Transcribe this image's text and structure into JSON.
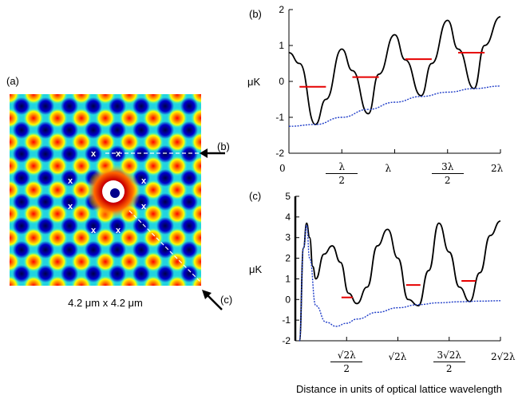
{
  "panel_a": {
    "label": "(a)",
    "caption": "4.2 μm x 4.2 μm",
    "arrow_b_label": "(b)",
    "arrow_c_label": "(c)",
    "marker_symbol": "x",
    "colors": {
      "low": "#00008b",
      "mid": "#ffff00",
      "high": "#8b0000",
      "center": "#ffffff"
    }
  },
  "chart_data": [
    {
      "panel": "(b)",
      "type": "line",
      "ylabel": "μK",
      "ylim": [
        -2,
        2
      ],
      "yticks": [
        "2",
        "1",
        "0",
        "-1",
        "-2"
      ],
      "xlim": [
        0,
        2
      ],
      "xticks_plain": [
        "0",
        "λ",
        "2λ"
      ],
      "xticks_frac": [
        {
          "num": "λ",
          "den": "2"
        },
        {
          "num": "3λ",
          "den": "2"
        }
      ],
      "series": [
        {
          "color": "#000000",
          "style": "solid",
          "x": [
            0,
            0.1,
            0.25,
            0.35,
            0.5,
            0.6,
            0.75,
            0.85,
            1.0,
            1.1,
            1.25,
            1.35,
            1.5,
            1.6,
            1.75,
            1.85,
            2.0
          ],
          "y": [
            0.8,
            0.5,
            -1.2,
            -0.5,
            0.9,
            0.3,
            -0.9,
            0.2,
            1.3,
            0.6,
            -0.4,
            0.5,
            1.7,
            0.9,
            -0.2,
            1.0,
            1.8
          ]
        },
        {
          "color": "#1e3cc8",
          "style": "dotted",
          "x": [
            0,
            0.25,
            0.5,
            0.75,
            1.0,
            1.25,
            1.5,
            1.75,
            2.0
          ],
          "y": [
            -1.25,
            -1.2,
            -1.0,
            -0.78,
            -0.58,
            -0.42,
            -0.3,
            -0.2,
            -0.13
          ]
        }
      ],
      "levels": {
        "color": "#e60000",
        "segments": [
          {
            "x0": 0.1,
            "x1": 0.35,
            "y": -0.15
          },
          {
            "x0": 0.6,
            "x1": 0.85,
            "y": 0.12
          },
          {
            "x0": 1.1,
            "x1": 1.35,
            "y": 0.62
          },
          {
            "x0": 1.6,
            "x1": 1.85,
            "y": 0.8
          }
        ]
      }
    },
    {
      "panel": "(c)",
      "type": "line",
      "ylabel": "μK",
      "ylim": [
        -2,
        5
      ],
      "yticks": [
        "5",
        "4",
        "3",
        "2",
        "1",
        "0",
        "-1",
        "-2"
      ],
      "xlim": [
        0,
        2
      ],
      "xticks_plain": [
        "√2λ",
        "2√2λ"
      ],
      "xticks_frac": [
        {
          "num": "√2λ",
          "den": "2"
        },
        {
          "num": "3√2λ",
          "den": "2"
        }
      ],
      "xlabel": "Distance in units of optical lattice wavelength",
      "series": [
        {
          "color": "#000000",
          "style": "solid",
          "x": [
            0.04,
            0.08,
            0.11,
            0.14,
            0.17,
            0.2,
            0.28,
            0.36,
            0.44,
            0.52,
            0.6,
            0.7,
            0.8,
            0.9,
            1.0,
            1.1,
            1.2,
            1.3,
            1.4,
            1.5,
            1.6,
            1.7,
            1.8,
            1.9,
            2.0
          ],
          "y": [
            -2.0,
            2.5,
            3.7,
            3.0,
            1.6,
            1.0,
            2.2,
            2.6,
            1.8,
            0.3,
            -0.2,
            0.6,
            2.6,
            3.4,
            2.0,
            0.0,
            -0.3,
            1.4,
            3.7,
            2.3,
            0.6,
            -0.1,
            1.3,
            3.1,
            3.8
          ]
        },
        {
          "color": "#1e3cc8",
          "style": "dotted",
          "x": [
            0.04,
            0.08,
            0.11,
            0.14,
            0.2,
            0.3,
            0.4,
            0.5,
            0.6,
            0.8,
            1.0,
            1.2,
            1.4,
            1.6,
            1.8,
            2.0
          ],
          "y": [
            -2.0,
            2.5,
            3.6,
            2.0,
            -0.3,
            -1.1,
            -1.3,
            -1.15,
            -0.95,
            -0.62,
            -0.4,
            -0.25,
            -0.16,
            -0.11,
            -0.08,
            -0.06
          ]
        }
      ],
      "levels": {
        "color": "#e60000",
        "segments": [
          {
            "x0": 0.45,
            "x1": 0.56,
            "y": 0.1
          },
          {
            "x0": 1.08,
            "x1": 1.22,
            "y": 0.7
          },
          {
            "x0": 1.62,
            "x1": 1.76,
            "y": 0.9
          }
        ]
      }
    }
  ]
}
